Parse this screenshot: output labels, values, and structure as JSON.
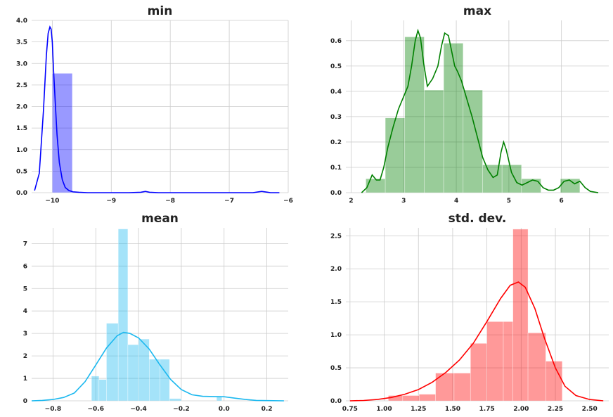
{
  "chart_data": [
    {
      "type": "histogram",
      "title": "min",
      "color": "#0000ff",
      "xlim": [
        -10.35,
        -6.0
      ],
      "ylim": [
        0,
        4.0
      ],
      "xticks": [
        -10,
        -9,
        -8,
        -7,
        -6
      ],
      "xtick_labels": [
        "−10",
        "−9",
        "−8",
        "−7",
        "−6"
      ],
      "yticks": [
        0,
        0.5,
        1.0,
        1.5,
        2.0,
        2.5,
        3.0,
        3.5,
        4.0
      ],
      "ytick_labels": [
        "0.0",
        "0.5",
        "1.0",
        "1.5",
        "2.0",
        "2.5",
        "3.0",
        "3.5",
        "4.0"
      ],
      "bins": [
        {
          "x0": -10.0,
          "x1": -9.66,
          "y": 2.77
        }
      ],
      "kde": {
        "x": [
          -10.3,
          -10.22,
          -10.15,
          -10.1,
          -10.07,
          -10.04,
          -10.02,
          -10.0,
          -9.98,
          -9.95,
          -9.92,
          -9.88,
          -9.83,
          -9.78,
          -9.72,
          -9.65,
          -9.55,
          -9.4,
          -9.2,
          -9.0,
          -8.7,
          -8.5,
          -8.42,
          -8.35,
          -8.2,
          -7.5,
          -6.6,
          -6.45,
          -6.3,
          -6.15
        ],
        "y": [
          0.05,
          0.45,
          1.9,
          3.2,
          3.7,
          3.85,
          3.8,
          3.5,
          2.9,
          2.1,
          1.35,
          0.7,
          0.3,
          0.12,
          0.05,
          0.02,
          0.01,
          0.0,
          0.0,
          0.0,
          0.0,
          0.01,
          0.03,
          0.01,
          0.0,
          0.0,
          0.0,
          0.03,
          0.0,
          0.0
        ]
      }
    },
    {
      "type": "histogram",
      "title": "max",
      "color": "#008000",
      "xlim": [
        1.9,
        6.9
      ],
      "ylim": [
        0,
        0.68
      ],
      "xticks": [
        2,
        3,
        4,
        5,
        6
      ],
      "xtick_labels": [
        "2",
        "3",
        "4",
        "5",
        "6"
      ],
      "yticks": [
        0,
        0.1,
        0.2,
        0.3,
        0.4,
        0.5,
        0.6
      ],
      "ytick_labels": [
        "0.0",
        "0.1",
        "0.2",
        "0.3",
        "0.4",
        "0.5",
        "0.6"
      ],
      "bins": [
        {
          "x0": 2.28,
          "x1": 2.65,
          "y": 0.055
        },
        {
          "x0": 2.65,
          "x1": 3.02,
          "y": 0.295
        },
        {
          "x0": 3.02,
          "x1": 3.39,
          "y": 0.615
        },
        {
          "x0": 3.39,
          "x1": 3.76,
          "y": 0.405
        },
        {
          "x0": 3.76,
          "x1": 4.13,
          "y": 0.59
        },
        {
          "x0": 4.13,
          "x1": 4.5,
          "y": 0.405
        },
        {
          "x0": 4.5,
          "x1": 4.87,
          "y": 0.11
        },
        {
          "x0": 4.87,
          "x1": 5.24,
          "y": 0.11
        },
        {
          "x0": 5.24,
          "x1": 5.61,
          "y": 0.055
        },
        {
          "x0": 5.61,
          "x1": 5.98,
          "y": 0.0
        },
        {
          "x0": 5.98,
          "x1": 6.35,
          "y": 0.055
        }
      ],
      "kde": {
        "x": [
          2.2,
          2.3,
          2.4,
          2.48,
          2.55,
          2.62,
          2.7,
          2.8,
          2.9,
          3.0,
          3.08,
          3.15,
          3.22,
          3.27,
          3.32,
          3.38,
          3.45,
          3.55,
          3.65,
          3.72,
          3.78,
          3.85,
          3.92,
          3.97,
          4.02,
          4.1,
          4.2,
          4.3,
          4.4,
          4.5,
          4.6,
          4.7,
          4.78,
          4.85,
          4.9,
          4.95,
          5.05,
          5.15,
          5.25,
          5.35,
          5.45,
          5.55,
          5.65,
          5.75,
          5.85,
          5.95,
          6.05,
          6.15,
          6.25,
          6.35,
          6.45,
          6.55,
          6.7
        ],
        "y": [
          0.0,
          0.02,
          0.07,
          0.05,
          0.05,
          0.1,
          0.18,
          0.26,
          0.33,
          0.38,
          0.42,
          0.5,
          0.6,
          0.64,
          0.61,
          0.51,
          0.42,
          0.45,
          0.5,
          0.58,
          0.63,
          0.62,
          0.55,
          0.5,
          0.48,
          0.44,
          0.37,
          0.3,
          0.22,
          0.14,
          0.09,
          0.06,
          0.07,
          0.16,
          0.2,
          0.17,
          0.08,
          0.04,
          0.03,
          0.04,
          0.05,
          0.045,
          0.02,
          0.01,
          0.01,
          0.02,
          0.045,
          0.05,
          0.035,
          0.045,
          0.02,
          0.005,
          0.0
        ]
      }
    },
    {
      "type": "histogram",
      "title": "mean",
      "color": "#1bb8ef",
      "xlim": [
        -0.9,
        0.3
      ],
      "ylim": [
        0,
        7.7
      ],
      "xticks": [
        -0.8,
        -0.6,
        -0.4,
        -0.2,
        0.0,
        0.2
      ],
      "xtick_labels": [
        "−0.8",
        "−0.6",
        "−0.4",
        "−0.2",
        "0.0",
        "0.2"
      ],
      "yticks": [
        0,
        1,
        2,
        3,
        4,
        5,
        6,
        7
      ],
      "ytick_labels": [
        "0",
        "1",
        "2",
        "3",
        "4",
        "5",
        "6",
        "7"
      ],
      "bins": [
        {
          "x0": -0.62,
          "x1": -0.585,
          "y": 1.1
        },
        {
          "x0": -0.585,
          "x1": -0.55,
          "y": 0.95
        },
        {
          "x0": -0.55,
          "x1": -0.495,
          "y": 3.45
        },
        {
          "x0": -0.495,
          "x1": -0.45,
          "y": 7.65
        },
        {
          "x0": -0.45,
          "x1": -0.4,
          "y": 2.5
        },
        {
          "x0": -0.4,
          "x1": -0.35,
          "y": 2.75
        },
        {
          "x0": -0.35,
          "x1": -0.3,
          "y": 1.85
        },
        {
          "x0": -0.3,
          "x1": -0.255,
          "y": 1.85
        },
        {
          "x0": -0.255,
          "x1": -0.2,
          "y": 0.1
        },
        {
          "x0": -0.2,
          "x1": -0.035,
          "y": 0.0
        },
        {
          "x0": -0.035,
          "x1": -0.01,
          "y": 0.2
        }
      ],
      "kde": {
        "x": [
          -0.9,
          -0.85,
          -0.8,
          -0.75,
          -0.7,
          -0.65,
          -0.6,
          -0.55,
          -0.5,
          -0.47,
          -0.44,
          -0.4,
          -0.35,
          -0.3,
          -0.25,
          -0.2,
          -0.15,
          -0.1,
          -0.05,
          0.0,
          0.05,
          0.1,
          0.15,
          0.2,
          0.28
        ],
        "y": [
          0.0,
          0.02,
          0.06,
          0.15,
          0.35,
          0.85,
          1.6,
          2.35,
          2.9,
          3.05,
          3.0,
          2.8,
          2.3,
          1.6,
          0.95,
          0.5,
          0.27,
          0.2,
          0.19,
          0.18,
          0.12,
          0.06,
          0.02,
          0.01,
          0.0
        ]
      }
    },
    {
      "type": "histogram",
      "title": "std. dev.",
      "color": "#ff0000",
      "xlim": [
        0.72,
        2.64
      ],
      "ylim": [
        0,
        2.62
      ],
      "xticks": [
        0.75,
        1.0,
        1.25,
        1.5,
        1.75,
        2.0,
        2.25,
        2.5
      ],
      "xtick_labels": [
        "0.75",
        "1.00",
        "1.25",
        "1.50",
        "1.75",
        "2.00",
        "2.25",
        "2.50"
      ],
      "yticks": [
        0,
        0.5,
        1.0,
        1.5,
        2.0,
        2.5
      ],
      "ytick_labels": [
        "0.0",
        "0.5",
        "1.0",
        "1.5",
        "2.0",
        "2.5"
      ],
      "bins": [
        {
          "x0": 1.03,
          "x1": 1.135,
          "y": 0.08
        },
        {
          "x0": 1.135,
          "x1": 1.255,
          "y": 0.08
        },
        {
          "x0": 1.255,
          "x1": 1.375,
          "y": 0.1
        },
        {
          "x0": 1.375,
          "x1": 1.51,
          "y": 0.42
        },
        {
          "x0": 1.51,
          "x1": 1.63,
          "y": 0.42
        },
        {
          "x0": 1.63,
          "x1": 1.75,
          "y": 0.87
        },
        {
          "x0": 1.75,
          "x1": 1.87,
          "y": 1.2
        },
        {
          "x0": 1.87,
          "x1": 1.94,
          "y": 1.2
        },
        {
          "x0": 1.94,
          "x1": 2.05,
          "y": 2.6
        },
        {
          "x0": 2.05,
          "x1": 2.18,
          "y": 1.03
        },
        {
          "x0": 2.18,
          "x1": 2.3,
          "y": 0.6
        }
      ],
      "kde": {
        "x": [
          0.75,
          0.85,
          0.95,
          1.05,
          1.15,
          1.25,
          1.35,
          1.45,
          1.55,
          1.65,
          1.75,
          1.85,
          1.92,
          1.98,
          2.03,
          2.1,
          2.17,
          2.25,
          2.32,
          2.4,
          2.5,
          2.6
        ],
        "y": [
          0.0,
          0.005,
          0.02,
          0.05,
          0.1,
          0.17,
          0.28,
          0.43,
          0.62,
          0.87,
          1.2,
          1.55,
          1.75,
          1.8,
          1.72,
          1.4,
          0.95,
          0.5,
          0.22,
          0.08,
          0.02,
          0.0
        ]
      }
    }
  ]
}
